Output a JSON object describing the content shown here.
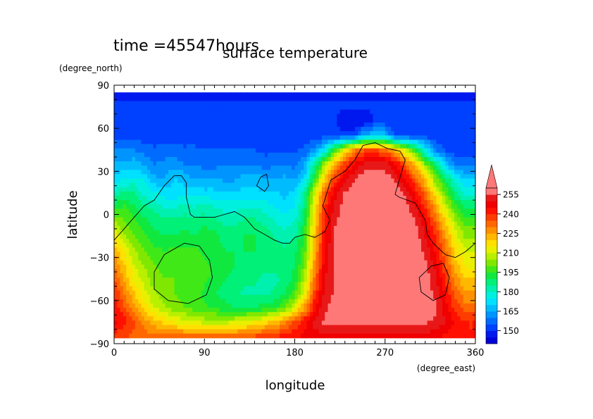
{
  "chart_data": {
    "type": "heatmap",
    "header": "time =45547hours",
    "title": "surface temperature",
    "xlabel": "longitude",
    "ylabel": "latitude",
    "x_units": "(degree_east)",
    "y_units": "(degree_north)",
    "xlim": [
      0,
      360
    ],
    "ylim": [
      -90,
      90
    ],
    "x_ticks": [
      0,
      90,
      180,
      270,
      360
    ],
    "y_ticks": [
      -90,
      -60,
      -30,
      0,
      30,
      60,
      90
    ],
    "colorbar": {
      "labels": [
        150,
        165,
        180,
        195,
        210,
        225,
        240,
        255
      ],
      "levels": [
        {
          "min": 140,
          "max": 145,
          "color": "#0000d8"
        },
        {
          "min": 145,
          "max": 150,
          "color": "#0018f0"
        },
        {
          "min": 150,
          "max": 155,
          "color": "#0040ff"
        },
        {
          "min": 155,
          "max": 160,
          "color": "#006cff"
        },
        {
          "min": 160,
          "max": 165,
          "color": "#0094ff"
        },
        {
          "min": 165,
          "max": 170,
          "color": "#00bcff"
        },
        {
          "min": 170,
          "max": 175,
          "color": "#00e0ff"
        },
        {
          "min": 175,
          "max": 180,
          "color": "#00f0e0"
        },
        {
          "min": 180,
          "max": 185,
          "color": "#00f0b0"
        },
        {
          "min": 185,
          "max": 190,
          "color": "#00f078"
        },
        {
          "min": 190,
          "max": 195,
          "color": "#10e840"
        },
        {
          "min": 195,
          "max": 200,
          "color": "#40e818"
        },
        {
          "min": 200,
          "max": 205,
          "color": "#80e800"
        },
        {
          "min": 205,
          "max": 210,
          "color": "#b8f000"
        },
        {
          "min": 210,
          "max": 215,
          "color": "#e8f000"
        },
        {
          "min": 215,
          "max": 220,
          "color": "#ffe000"
        },
        {
          "min": 220,
          "max": 225,
          "color": "#ffb800"
        },
        {
          "min": 225,
          "max": 230,
          "color": "#ff9000"
        },
        {
          "min": 230,
          "max": 235,
          "color": "#ff6800"
        },
        {
          "min": 235,
          "max": 240,
          "color": "#ff3c00"
        },
        {
          "min": 240,
          "max": 245,
          "color": "#ff1000"
        },
        {
          "min": 245,
          "max": 250,
          "color": "#f00000"
        },
        {
          "min": 250,
          "max": 255,
          "color": "#e81818"
        },
        {
          "min": 255,
          "max": 260,
          "color": "#ff7878"
        }
      ],
      "extend": "max"
    },
    "field": {
      "x": [
        0,
        10,
        20,
        30,
        40,
        50,
        60,
        70,
        80,
        90,
        100,
        110,
        120,
        130,
        140,
        150,
        160,
        170,
        180,
        190,
        200,
        210,
        220,
        230,
        240,
        250,
        260,
        270,
        280,
        290,
        300,
        310,
        320,
        330,
        340,
        350,
        360
      ],
      "y": [
        85,
        75,
        65,
        55,
        45,
        35,
        25,
        15,
        5,
        -5,
        -15,
        -25,
        -35,
        -45,
        -55,
        -65,
        -75,
        -85
      ],
      "values": [
        [
          148,
          148,
          148,
          148,
          148,
          148,
          148,
          148,
          148,
          148,
          148,
          148,
          148,
          148,
          148,
          148,
          148,
          148,
          148,
          148,
          148,
          148,
          148,
          148,
          148,
          148,
          148,
          148,
          148,
          148,
          148,
          148,
          148,
          148,
          148,
          148,
          148
        ],
        [
          151,
          151,
          151,
          151,
          151,
          151,
          151,
          151,
          151,
          151,
          151,
          151,
          151,
          151,
          151,
          151,
          151,
          151,
          151,
          151,
          151,
          151,
          151,
          151,
          151,
          151,
          151,
          151,
          151,
          151,
          151,
          151,
          151,
          151,
          151,
          151,
          151
        ],
        [
          151,
          151,
          151,
          151,
          151,
          151,
          151,
          151,
          151,
          151,
          151,
          151,
          151,
          151,
          151,
          151,
          151,
          151,
          151,
          151,
          151,
          151,
          151,
          145,
          145,
          145,
          151,
          151,
          151,
          151,
          151,
          151,
          151,
          151,
          151,
          151,
          151
        ],
        [
          152,
          152,
          152,
          152,
          152,
          152,
          152,
          152,
          152,
          152,
          152,
          152,
          152,
          152,
          152,
          152,
          152,
          152,
          152,
          152,
          152,
          152,
          152,
          152,
          152,
          168,
          168,
          168,
          152,
          152,
          152,
          152,
          152,
          152,
          152,
          152,
          152
        ],
        [
          160,
          160,
          160,
          158,
          156,
          156,
          157,
          156,
          156,
          155,
          155,
          155,
          155,
          155,
          155,
          154,
          154,
          154,
          154,
          156,
          162,
          175,
          195,
          215,
          230,
          235,
          235,
          232,
          222,
          210,
          196,
          176,
          160,
          154,
          152,
          152,
          152
        ],
        [
          166,
          166,
          168,
          164,
          160,
          162,
          163,
          160,
          160,
          158,
          158,
          160,
          160,
          160,
          160,
          156,
          160,
          160,
          158,
          165,
          185,
          205,
          225,
          238,
          246,
          252,
          252,
          252,
          246,
          234,
          220,
          202,
          186,
          170,
          158,
          158,
          158
        ],
        [
          172,
          174,
          176,
          174,
          166,
          164,
          170,
          168,
          164,
          164,
          164,
          164,
          164,
          168,
          168,
          166,
          164,
          166,
          164,
          172,
          195,
          220,
          238,
          248,
          255,
          258,
          258,
          258,
          254,
          246,
          234,
          220,
          202,
          190,
          176,
          170,
          170
        ],
        [
          180,
          186,
          186,
          178,
          176,
          172,
          172,
          172,
          174,
          172,
          172,
          170,
          170,
          172,
          172,
          170,
          172,
          168,
          172,
          185,
          210,
          234,
          248,
          256,
          258,
          258,
          258,
          258,
          258,
          254,
          244,
          232,
          216,
          200,
          186,
          178,
          178
        ],
        [
          194,
          196,
          190,
          186,
          184,
          180,
          180,
          182,
          180,
          182,
          180,
          178,
          178,
          180,
          180,
          178,
          175,
          172,
          175,
          188,
          215,
          240,
          252,
          258,
          258,
          258,
          258,
          258,
          258,
          258,
          250,
          240,
          226,
          210,
          196,
          190,
          190
        ],
        [
          205,
          200,
          196,
          192,
          188,
          186,
          186,
          188,
          186,
          188,
          186,
          184,
          184,
          186,
          186,
          184,
          180,
          178,
          180,
          192,
          218,
          242,
          254,
          258,
          258,
          258,
          258,
          258,
          258,
          258,
          256,
          246,
          234,
          220,
          206,
          198,
          198
        ],
        [
          214,
          206,
          200,
          196,
          192,
          190,
          190,
          192,
          190,
          194,
          192,
          188,
          188,
          190,
          190,
          188,
          184,
          182,
          184,
          196,
          222,
          244,
          256,
          258,
          258,
          258,
          258,
          258,
          258,
          258,
          258,
          250,
          240,
          226,
          212,
          204,
          204
        ],
        [
          222,
          214,
          206,
          200,
          196,
          195,
          196,
          196,
          196,
          194,
          192,
          190,
          190,
          190,
          190,
          188,
          188,
          186,
          188,
          198,
          224,
          246,
          256,
          258,
          258,
          258,
          258,
          258,
          258,
          258,
          258,
          254,
          244,
          232,
          218,
          210,
          210
        ],
        [
          230,
          220,
          210,
          204,
          200,
          198,
          198,
          198,
          198,
          196,
          194,
          192,
          190,
          188,
          188,
          186,
          186,
          186,
          190,
          202,
          228,
          248,
          256,
          258,
          258,
          258,
          258,
          258,
          258,
          258,
          258,
          256,
          248,
          236,
          222,
          214,
          214
        ],
        [
          236,
          224,
          214,
          208,
          202,
          200,
          200,
          200,
          200,
          196,
          194,
          190,
          188,
          186,
          186,
          184,
          184,
          186,
          192,
          206,
          232,
          250,
          256,
          258,
          258,
          258,
          258,
          258,
          258,
          258,
          258,
          258,
          252,
          240,
          228,
          220,
          220
        ],
        [
          240,
          230,
          220,
          212,
          206,
          202,
          200,
          198,
          196,
          194,
          190,
          188,
          186,
          184,
          184,
          184,
          186,
          190,
          198,
          214,
          238,
          252,
          256,
          258,
          258,
          258,
          258,
          258,
          258,
          258,
          258,
          258,
          254,
          244,
          234,
          226,
          226
        ],
        [
          244,
          236,
          226,
          218,
          210,
          206,
          202,
          200,
          198,
          196,
          194,
          192,
          190,
          190,
          190,
          192,
          194,
          200,
          210,
          226,
          244,
          254,
          258,
          258,
          258,
          258,
          258,
          258,
          258,
          258,
          258,
          258,
          256,
          248,
          238,
          232,
          232
        ],
        [
          246,
          242,
          236,
          228,
          222,
          218,
          214,
          212,
          210,
          208,
          208,
          208,
          210,
          212,
          214,
          218,
          222,
          228,
          236,
          244,
          252,
          256,
          256,
          256,
          256,
          256,
          256,
          256,
          256,
          256,
          256,
          256,
          254,
          250,
          244,
          240,
          240
        ],
        [
          238,
          236,
          234,
          232,
          232,
          232,
          232,
          232,
          232,
          232,
          232,
          232,
          232,
          234,
          236,
          238,
          240,
          242,
          244,
          246,
          248,
          248,
          248,
          248,
          248,
          248,
          248,
          248,
          248,
          248,
          248,
          248,
          246,
          244,
          242,
          240,
          240
        ]
      ]
    },
    "overlay_contours": [
      {
        "type": "coastline",
        "points": [
          [
            0,
            -18
          ],
          [
            10,
            -10
          ],
          [
            20,
            -2
          ],
          [
            30,
            6
          ],
          [
            40,
            10
          ],
          [
            50,
            20
          ],
          [
            60,
            27
          ],
          [
            67,
            27
          ],
          [
            72,
            22
          ],
          [
            72,
            12
          ],
          [
            76,
            0
          ],
          [
            80,
            -2
          ],
          [
            90,
            -2
          ],
          [
            100,
            -2
          ],
          [
            110,
            0
          ],
          [
            120,
            2
          ],
          [
            130,
            -2
          ],
          [
            140,
            -10
          ],
          [
            150,
            -14
          ],
          [
            160,
            -18
          ],
          [
            168,
            -20
          ],
          [
            175,
            -20
          ],
          [
            180,
            -16
          ],
          [
            190,
            -14
          ],
          [
            200,
            -16
          ],
          [
            210,
            -12
          ],
          [
            215,
            -4
          ],
          [
            208,
            6
          ],
          [
            216,
            24
          ],
          [
            230,
            30
          ],
          [
            240,
            38
          ],
          [
            248,
            48
          ],
          [
            260,
            50
          ],
          [
            272,
            46
          ],
          [
            285,
            44
          ],
          [
            290,
            38
          ],
          [
            285,
            26
          ],
          [
            280,
            14
          ],
          [
            284,
            12
          ],
          [
            300,
            8
          ],
          [
            310,
            -4
          ],
          [
            312,
            -14
          ],
          [
            318,
            -20
          ],
          [
            330,
            -28
          ],
          [
            340,
            -30
          ],
          [
            350,
            -26
          ],
          [
            360,
            -20
          ]
        ]
      },
      {
        "type": "coastline",
        "points": [
          [
            142,
            20
          ],
          [
            146,
            26
          ],
          [
            152,
            28
          ],
          [
            154,
            20
          ],
          [
            150,
            16
          ],
          [
            146,
            18
          ],
          [
            142,
            20
          ]
        ]
      },
      {
        "type": "contour",
        "points": [
          [
            40,
            -40
          ],
          [
            50,
            -28
          ],
          [
            70,
            -20
          ],
          [
            85,
            -22
          ],
          [
            95,
            -32
          ],
          [
            98,
            -44
          ],
          [
            92,
            -56
          ],
          [
            74,
            -62
          ],
          [
            54,
            -60
          ],
          [
            40,
            -52
          ],
          [
            40,
            -40
          ]
        ]
      },
      {
        "type": "contour",
        "points": [
          [
            304,
            -44
          ],
          [
            316,
            -36
          ],
          [
            328,
            -34
          ],
          [
            334,
            -44
          ],
          [
            330,
            -56
          ],
          [
            318,
            -60
          ],
          [
            306,
            -54
          ],
          [
            304,
            -44
          ]
        ]
      }
    ]
  }
}
